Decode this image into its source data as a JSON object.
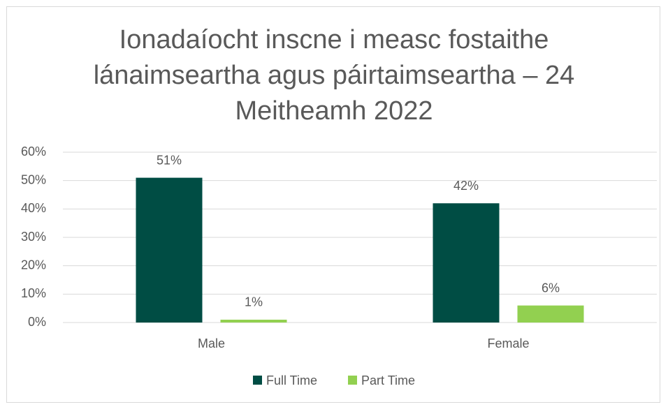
{
  "chart_data": {
    "type": "bar",
    "title": "Ionadaíocht inscne i measc fostaithe lánaimseartha agus páirtaimseartha – 24 Meitheamh 2022",
    "categories": [
      "Male",
      "Female"
    ],
    "series": [
      {
        "name": "Full Time",
        "color": "#004d44",
        "values": [
          51,
          42
        ],
        "value_labels": [
          "51%",
          "42%"
        ]
      },
      {
        "name": "Part Time",
        "color": "#92d050",
        "values": [
          1,
          6
        ],
        "value_labels": [
          "1%",
          "6%"
        ]
      }
    ],
    "ylim": [
      0,
      60
    ],
    "yticks": [
      {
        "value": 0,
        "label": "0%"
      },
      {
        "value": 10,
        "label": "10%"
      },
      {
        "value": 20,
        "label": "20%"
      },
      {
        "value": 30,
        "label": "30%"
      },
      {
        "value": 40,
        "label": "40%"
      },
      {
        "value": 50,
        "label": "50%"
      },
      {
        "value": 60,
        "label": "60%"
      }
    ],
    "grid": true,
    "legend": "bottom"
  }
}
